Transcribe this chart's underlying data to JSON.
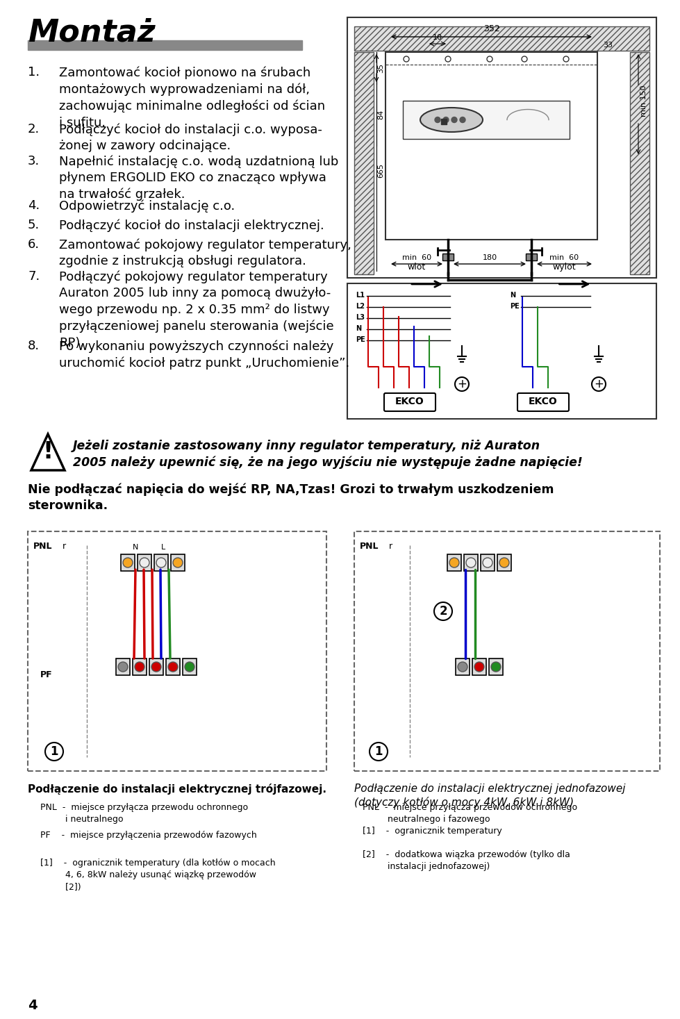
{
  "title": "Montaż",
  "title_bar_color": "#888888",
  "bg_color": "#ffffff",
  "text_color": "#000000",
  "page_number": "4",
  "numbered_items": [
    {
      "num": "1.",
      "text": "Zamontować kocioł pionowo na śrubach\nmontażowych wyprowadzeniami na dół,\nzachowując minimalne odległości od ścian\ni sufitu."
    },
    {
      "num": "2.",
      "text": "Podłączyć kocioł do instalacji c.o. wyposa-\nżonej w zawory odcinające."
    },
    {
      "num": "3.",
      "text": "Napełnić instalację c.o. wodą uzdatnioną lub\npłynem ERGOLID EKO co znacząco wpływa\nna trwałość grzałek."
    },
    {
      "num": "4.",
      "text": "Odpowietrzyć instalację c.o."
    },
    {
      "num": "5.",
      "text": "Podłączyć kocioł do instalacji elektrycznej."
    },
    {
      "num": "6.",
      "text": "Zamontować pokojowy regulator temperatury,\nzgodnie z instrukcją obsługi regulatora."
    },
    {
      "num": "7.",
      "text": "Podłączyć pokojowy regulator temperatury\nAuraton 2005 lub inny za pomocą dwużyło-\nwego przewodu np. 2 x 0.35 mm² do listwy\nprzyłączeniowej panelu sterowania (wejście\nRP)."
    },
    {
      "num": "8.",
      "text": "Po wykonaniu powyższych czynności należy\nuruchomić kocioł patrz punkt „Uruchomienie”."
    }
  ],
  "warning_italic_text": "Jeżeli zostanie zastosowany inny regulator temperatury, niż Auraton\n2005 należy upewnić się, że na jego wyjściu nie występuje żadne napięcie!",
  "warning_bold_text": "Nie podłączać napięcia do wejść RP, NA,Tzas! Grozi to trwałym uszkodzeniem\nsterownika.",
  "caption_left": "Podłączenie do instalacji elektrycznej trójfazowej.",
  "caption_right": "Podłączenie do instalacji elektrycznej jednofazowej\n(dotyczy kotłów o mocy 4kW, 6kW i 8kW)",
  "legend_left": [
    "PNL  -  miejsce przyłącza przewodu ochronnego\n         i neutralnego",
    "PF    -  miejsce przyłączenia przewodów fazowych",
    "[1]    -  ogranicznik temperatury (dla kotłów o mocach\n         4, 6, 8kW należy usunąć wiązkę przewodów\n         [2])"
  ],
  "legend_right": [
    "PNL  -  miejsce przyłącza przewodów ochronnego\n         neutralnego i fazowego",
    "[1]    -  ogranicznik temperatury",
    "[2]    -  dodatkowa wiązka przewodów (tylko dla\n         instalacji jednofazowej)"
  ]
}
